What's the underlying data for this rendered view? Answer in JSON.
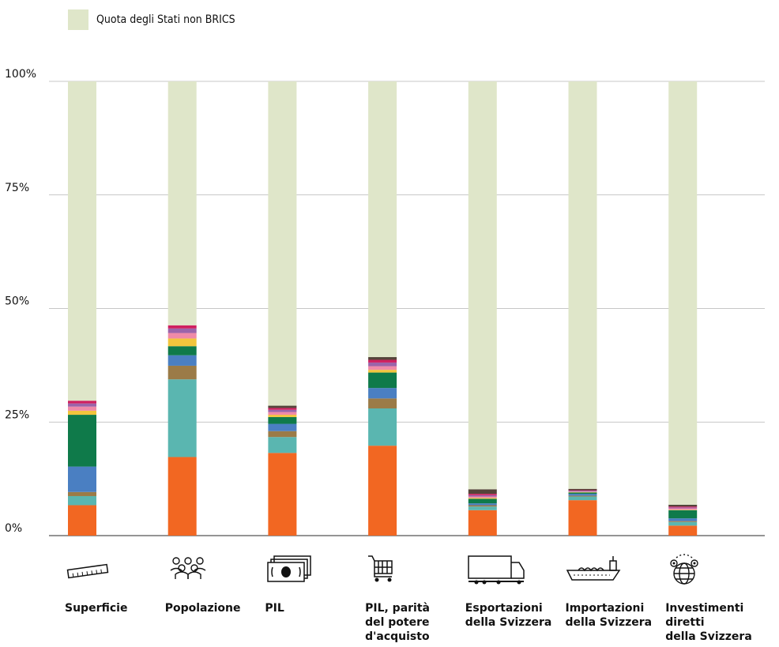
{
  "legend": {
    "label": "Quota degli Stati non BRICS",
    "color": "#dfe6c9"
  },
  "chart_data": {
    "type": "bar",
    "stacked": true,
    "ylim": [
      0,
      100
    ],
    "yticks": [
      "0%",
      "25%",
      "50%",
      "75%",
      "100%"
    ],
    "ytick_values": [
      0,
      25,
      50,
      75,
      100
    ],
    "grid": true,
    "legend_position": "top-left",
    "categories": [
      "Superficie",
      "Popolazione",
      "PIL",
      "PIL, parità\ndel potere\nd'acquisto",
      "Esportazioni\ndella Svizzera",
      "Importazioni\ndella Svizzera",
      "Investimenti diretti\ndella Svizzera"
    ],
    "icons": [
      "ruler-icon",
      "population-icon",
      "banknotes-icon",
      "shopping-cart-icon",
      "truck-icon",
      "cargo-ship-icon",
      "globe-investment-icon"
    ],
    "segment_colors": [
      "#f26722",
      "#5ab6b0",
      "#9b7b47",
      "#4a7fc2",
      "#0f7a4a",
      "#f2c53d",
      "#f08aa8",
      "#9b64aa",
      "#cf1f5f",
      "#55443a"
    ],
    "series": [
      {
        "values": [
          6.7,
          17.3,
          18.2,
          19.8,
          5.6,
          7.8,
          2.2
        ]
      },
      {
        "values": [
          2.0,
          17.1,
          3.5,
          8.2,
          0.8,
          0.8,
          0.8
        ]
      },
      {
        "values": [
          0.9,
          3.0,
          1.3,
          2.2,
          0.3,
          0.2,
          0.2
        ]
      },
      {
        "values": [
          5.6,
          2.3,
          1.6,
          2.3,
          0.4,
          0.4,
          0.6
        ]
      },
      {
        "values": [
          11.4,
          2.0,
          1.5,
          3.4,
          1.0,
          0.3,
          1.8
        ]
      },
      {
        "values": [
          0.9,
          1.7,
          0.5,
          0.6,
          0.2,
          0.1,
          0.1
        ]
      },
      {
        "values": [
          0.9,
          1.2,
          0.6,
          0.8,
          0.3,
          0.1,
          0.3
        ]
      },
      {
        "values": [
          0.7,
          1.0,
          0.5,
          0.8,
          0.3,
          0.2,
          0.2
        ]
      },
      {
        "values": [
          0.6,
          0.7,
          0.4,
          0.6,
          0.3,
          0.1,
          0.2
        ]
      },
      {
        "values": [
          0.0,
          0.0,
          0.5,
          0.6,
          1.0,
          0.3,
          0.4
        ]
      },
      {
        "name": "Quota degli Stati non BRICS",
        "values": [
          70.3,
          53.7,
          71.4,
          60.7,
          89.8,
          89.7,
          93.2
        ]
      }
    ]
  }
}
